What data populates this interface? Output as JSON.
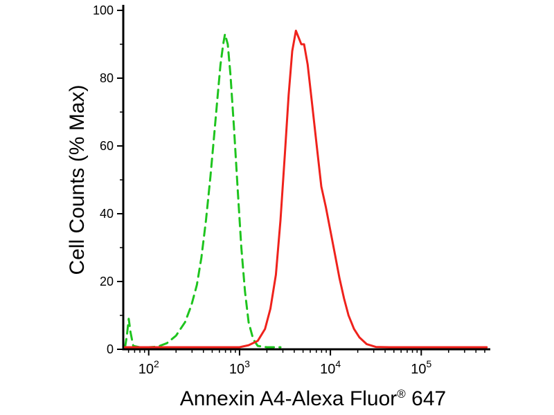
{
  "chart_data": {
    "type": "line",
    "chart_kind": "flow-cytometry-histogram",
    "title": "",
    "xlabel": {
      "base": "Annexin A4-Alexa Fluor",
      "sup": "®",
      "suffix": " 647",
      "full": "Annexin A4-Alexa Fluor® 647"
    },
    "ylabel": "Cell Counts (% Max)",
    "x_axis": {
      "scale": "log10",
      "range_log10": [
        1.72,
        5.76
      ],
      "major_ticks_log10": [
        2,
        3,
        4,
        5
      ],
      "tick_label_base": "10",
      "minor_ticks": "log-decade-subdivisions"
    },
    "y_axis": {
      "range": [
        0,
        100
      ],
      "major_ticks": [
        0,
        20,
        40,
        60,
        80,
        100
      ],
      "minor_ticks": [
        10,
        30,
        50,
        70,
        90
      ]
    },
    "grid": "off",
    "legend": "none",
    "series": [
      {
        "name": "green-dashed-peak",
        "color": "#1ec41e",
        "line_style": "dashed",
        "dash": "12 8",
        "width": 3,
        "peak_log10x": 2.84,
        "peak_y": 93,
        "points_log10x_y": [
          [
            1.74,
            0
          ],
          [
            1.76,
            4
          ],
          [
            1.78,
            9
          ],
          [
            1.8,
            5
          ],
          [
            1.83,
            1
          ],
          [
            1.9,
            0.4
          ],
          [
            2.0,
            0.4
          ],
          [
            2.1,
            0.8
          ],
          [
            2.2,
            1.8
          ],
          [
            2.3,
            4
          ],
          [
            2.4,
            8
          ],
          [
            2.47,
            13
          ],
          [
            2.53,
            19
          ],
          [
            2.58,
            27
          ],
          [
            2.63,
            38
          ],
          [
            2.68,
            51
          ],
          [
            2.72,
            63
          ],
          [
            2.76,
            75
          ],
          [
            2.79,
            84
          ],
          [
            2.82,
            90
          ],
          [
            2.84,
            93
          ],
          [
            2.87,
            90
          ],
          [
            2.9,
            81
          ],
          [
            2.94,
            65
          ],
          [
            2.98,
            47
          ],
          [
            3.02,
            30
          ],
          [
            3.06,
            17
          ],
          [
            3.1,
            8
          ],
          [
            3.15,
            3
          ],
          [
            3.2,
            1
          ],
          [
            3.3,
            0.4
          ],
          [
            3.45,
            0.3
          ]
        ]
      },
      {
        "name": "red-solid-peak",
        "color": "#ef221c",
        "line_style": "solid",
        "dash": "",
        "width": 3,
        "peak_log10x": 3.62,
        "peak_y": 94,
        "points_log10x_y": [
          [
            1.74,
            0.2
          ],
          [
            2.0,
            0.2
          ],
          [
            2.4,
            0.2
          ],
          [
            2.8,
            0.3
          ],
          [
            3.0,
            0.6
          ],
          [
            3.1,
            1.2
          ],
          [
            3.2,
            2.5
          ],
          [
            3.28,
            6
          ],
          [
            3.34,
            12
          ],
          [
            3.4,
            22
          ],
          [
            3.45,
            38
          ],
          [
            3.5,
            58
          ],
          [
            3.54,
            75
          ],
          [
            3.58,
            88
          ],
          [
            3.62,
            94
          ],
          [
            3.65,
            92
          ],
          [
            3.68,
            90
          ],
          [
            3.71,
            90
          ],
          [
            3.75,
            84
          ],
          [
            3.8,
            72
          ],
          [
            3.85,
            60
          ],
          [
            3.9,
            48
          ],
          [
            3.95,
            42
          ],
          [
            4.0,
            35
          ],
          [
            4.05,
            28
          ],
          [
            4.1,
            21
          ],
          [
            4.15,
            15
          ],
          [
            4.2,
            10
          ],
          [
            4.26,
            6
          ],
          [
            4.32,
            3.5
          ],
          [
            4.4,
            1.5
          ],
          [
            4.5,
            0.7
          ],
          [
            4.65,
            0.3
          ],
          [
            5.0,
            0.2
          ],
          [
            5.4,
            0.2
          ],
          [
            5.72,
            0.2
          ]
        ]
      }
    ]
  }
}
